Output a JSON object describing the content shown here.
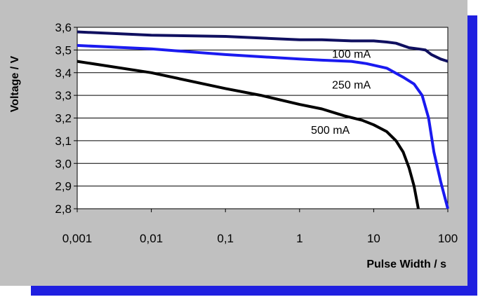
{
  "chart_data": {
    "type": "line",
    "xscale": "log",
    "xlabel": "Pulse Width / s",
    "ylabel": "Voltage / V",
    "xlim": [
      0.001,
      100
    ],
    "ylim": [
      2.8,
      3.6
    ],
    "x_ticks": [
      "0,001",
      "0,01",
      "0,1",
      "1",
      "10",
      "100"
    ],
    "y_ticks": [
      "2,8",
      "2,9",
      "3,0",
      "3,1",
      "3,2",
      "3,3",
      "3,4",
      "3,5",
      "3,6"
    ],
    "grid": "horizontal",
    "colors": {
      "background": "#c0c0c0",
      "shadow": "#1f1fe0",
      "plot_area": "#ffffff"
    },
    "series": [
      {
        "name": "100 mA",
        "color": "#101060",
        "points": [
          [
            0.001,
            3.58
          ],
          [
            0.01,
            3.565
          ],
          [
            0.1,
            3.56
          ],
          [
            1,
            3.545
          ],
          [
            2,
            3.545
          ],
          [
            5,
            3.54
          ],
          [
            10,
            3.54
          ],
          [
            15,
            3.535
          ],
          [
            20,
            3.53
          ],
          [
            30,
            3.51
          ],
          [
            40,
            3.505
          ],
          [
            50,
            3.5
          ],
          [
            60,
            3.48
          ],
          [
            80,
            3.46
          ],
          [
            100,
            3.45
          ]
        ]
      },
      {
        "name": "250 mA",
        "color": "#1a1af0",
        "points": [
          [
            0.001,
            3.52
          ],
          [
            0.01,
            3.505
          ],
          [
            0.1,
            3.48
          ],
          [
            1,
            3.46
          ],
          [
            2,
            3.455
          ],
          [
            5,
            3.45
          ],
          [
            8,
            3.44
          ],
          [
            15,
            3.42
          ],
          [
            25,
            3.38
          ],
          [
            35,
            3.35
          ],
          [
            45,
            3.3
          ],
          [
            55,
            3.2
          ],
          [
            65,
            3.05
          ],
          [
            80,
            2.92
          ],
          [
            100,
            2.8
          ]
        ]
      },
      {
        "name": "500 mA",
        "color": "#000000",
        "points": [
          [
            0.001,
            3.45
          ],
          [
            0.01,
            3.4
          ],
          [
            0.1,
            3.33
          ],
          [
            0.3,
            3.3
          ],
          [
            1,
            3.26
          ],
          [
            2,
            3.24
          ],
          [
            4,
            3.21
          ],
          [
            7,
            3.19
          ],
          [
            10,
            3.17
          ],
          [
            15,
            3.14
          ],
          [
            20,
            3.1
          ],
          [
            25,
            3.05
          ],
          [
            30,
            2.98
          ],
          [
            35,
            2.9
          ],
          [
            40,
            2.8
          ]
        ]
      }
    ],
    "annotations": [
      {
        "text": "100 mA",
        "x": 5,
        "y": 3.465
      },
      {
        "text": "250 mA",
        "x": 5,
        "y": 3.33
      },
      {
        "text": "500 mA",
        "x": 2.6,
        "y": 3.13
      }
    ]
  }
}
